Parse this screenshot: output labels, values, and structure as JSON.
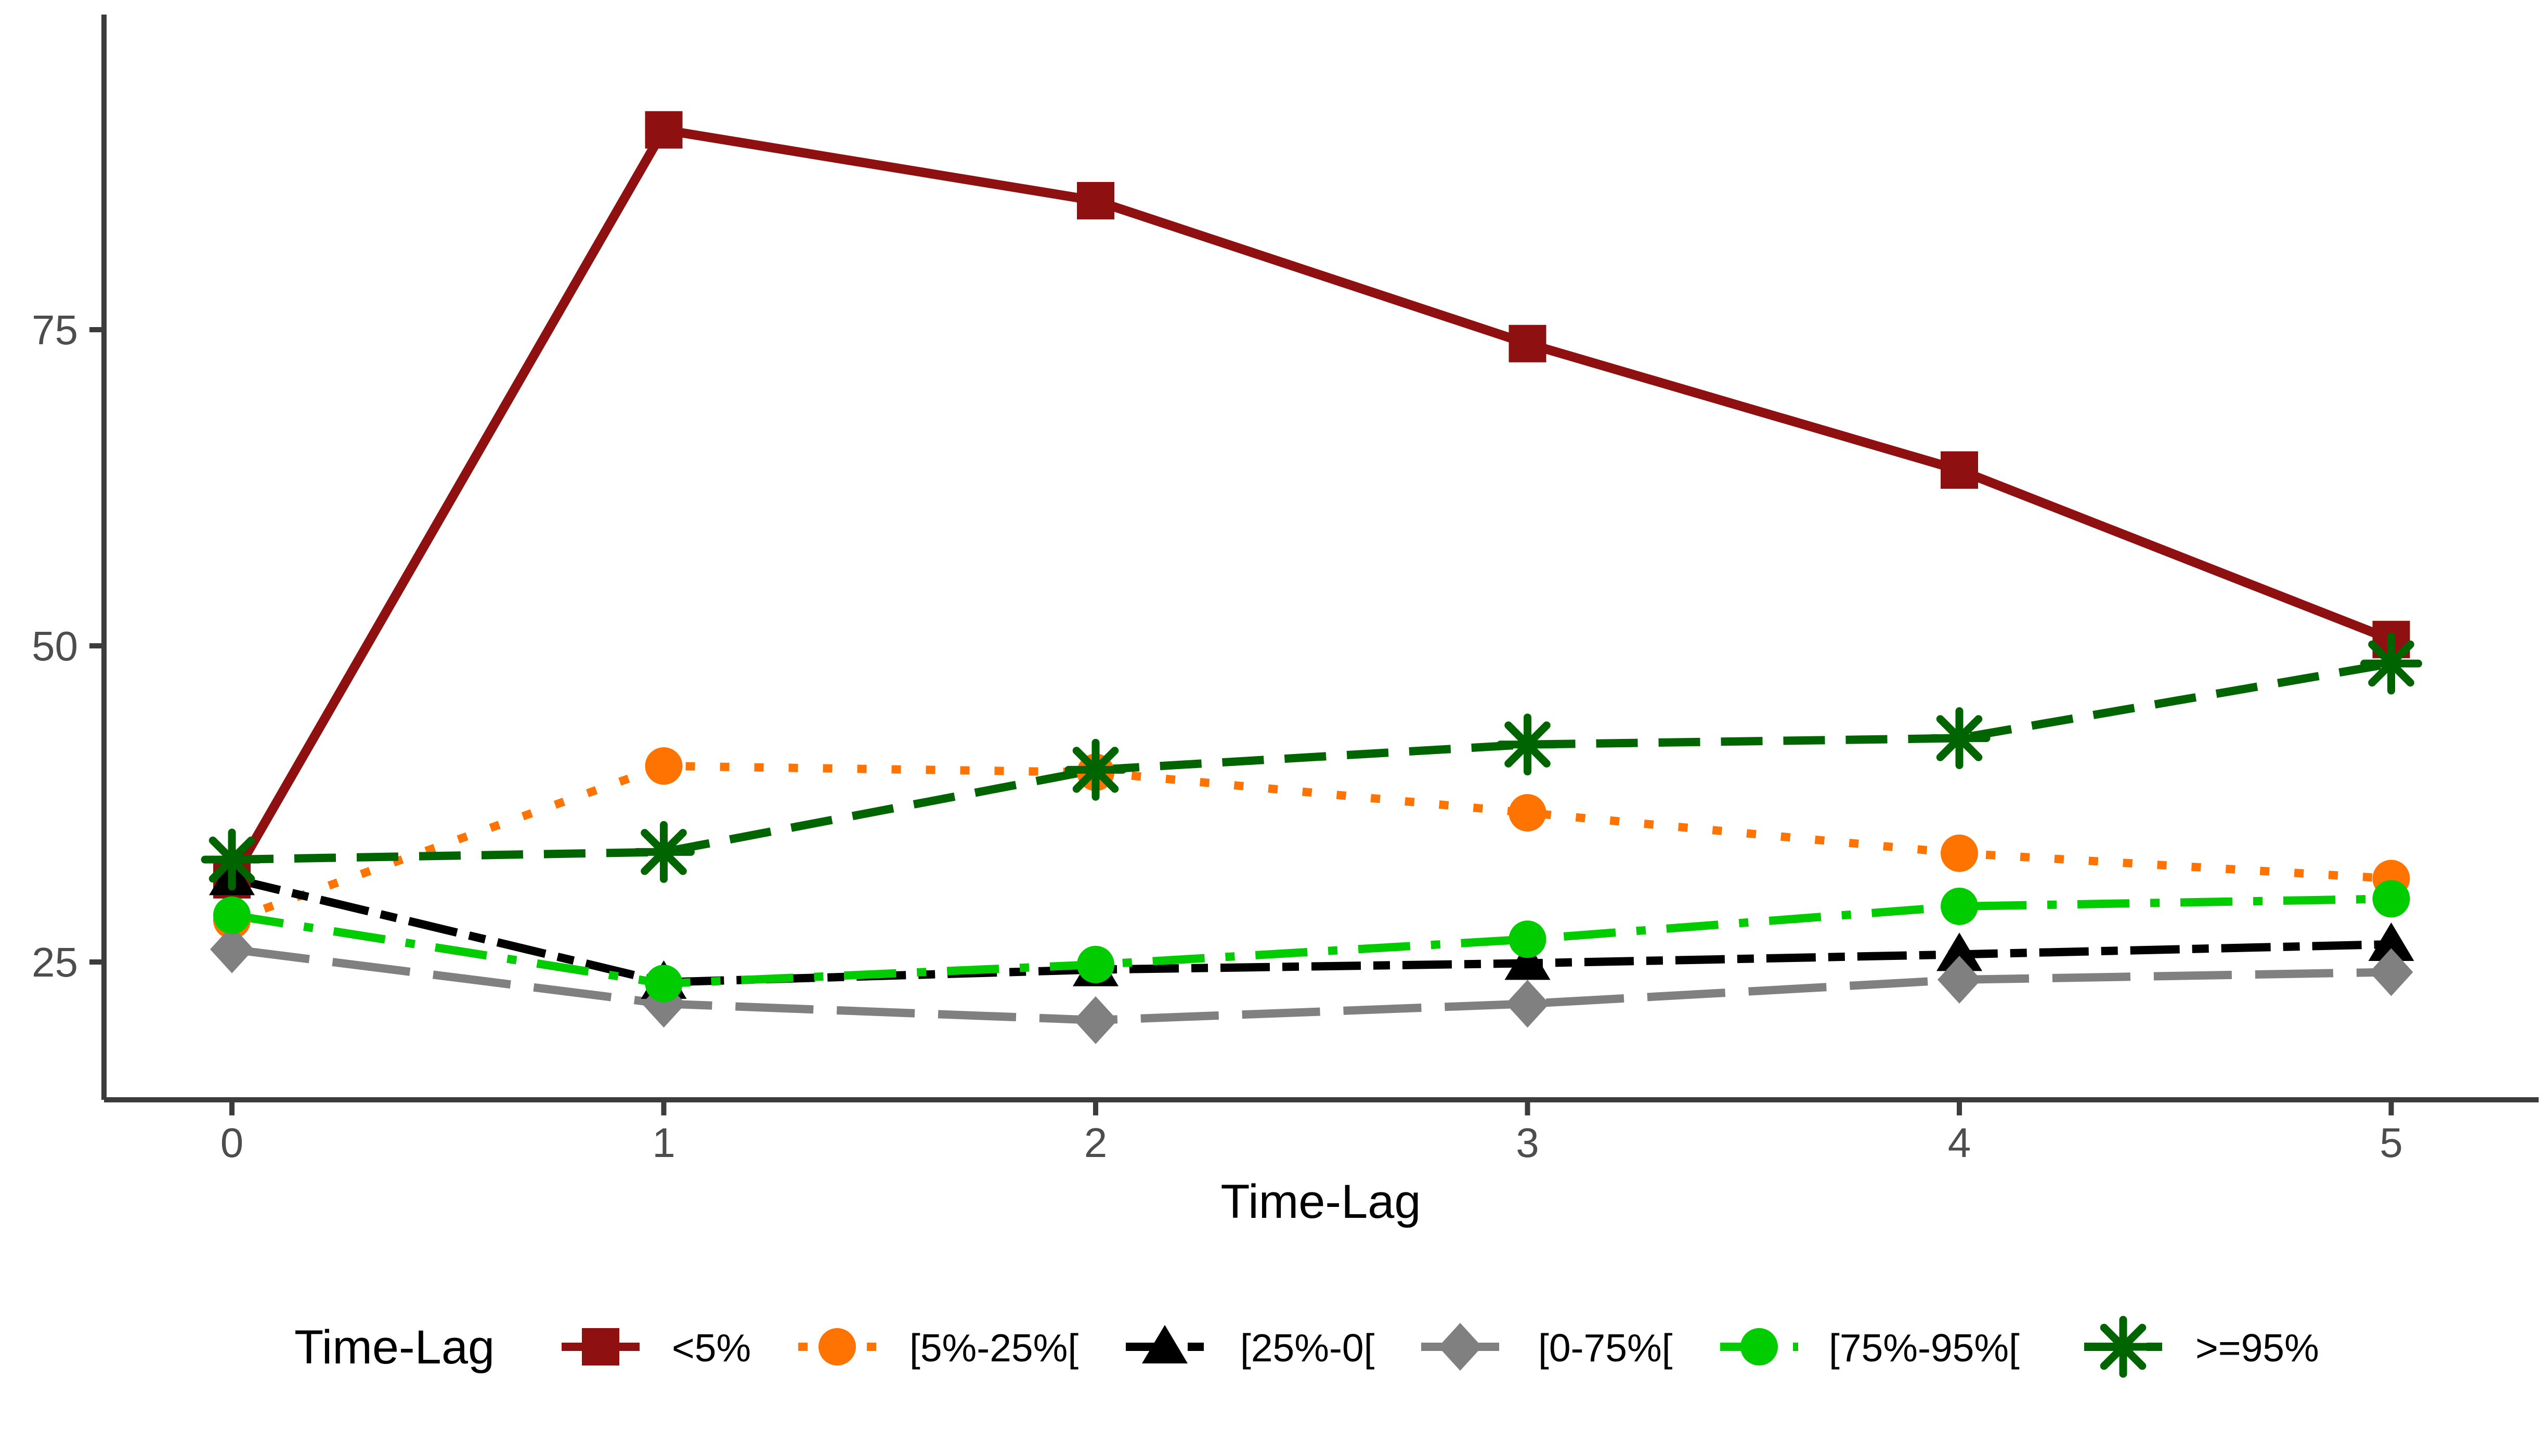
{
  "chart_data": {
    "type": "line",
    "title": "",
    "xlabel": "Time-Lag",
    "ylabel": "",
    "legend_title": "Time-Lag",
    "legend_position": "bottom",
    "grid": false,
    "x": [
      0,
      1,
      2,
      3,
      4,
      5
    ],
    "xticks": [
      "0",
      "1",
      "2",
      "3",
      "4",
      "5"
    ],
    "yticks": [
      "25",
      "50",
      "75"
    ],
    "xlim": [
      -0.3,
      5.34
    ],
    "ylim": [
      14.3,
      99.6
    ],
    "series": [
      {
        "name": "<5%",
        "color": "#8F1010",
        "marker": "square",
        "linestyle": "solid",
        "values": [
          31.5,
          90.8,
          85.2,
          73.9,
          63.9,
          50.5
        ]
      },
      {
        "name": "[5%-25%[",
        "color": "#FF7400",
        "marker": "circle",
        "linestyle": "dotted",
        "values": [
          28.3,
          40.5,
          40.0,
          36.8,
          33.6,
          31.6
        ]
      },
      {
        "name": "[25%-0[",
        "color": "#000000",
        "marker": "triangle",
        "linestyle": "twodash",
        "values": [
          31.6,
          23.4,
          24.4,
          24.9,
          25.6,
          26.4
        ]
      },
      {
        "name": "[0-75%[",
        "color": "#808080",
        "marker": "diamond",
        "linestyle": "longdash",
        "values": [
          26.0,
          21.7,
          20.4,
          21.7,
          23.6,
          24.2
        ]
      },
      {
        "name": "[75%-95%[",
        "color": "#00CC00",
        "marker": "circle",
        "linestyle": "dashdot",
        "values": [
          28.7,
          23.3,
          24.8,
          26.8,
          29.4,
          30.0
        ]
      },
      {
        "name": ">=95%",
        "color": "#006400",
        "marker": "asterisk",
        "linestyle": "dashed",
        "values": [
          33.1,
          33.7,
          40.2,
          42.2,
          42.7,
          48.6
        ]
      }
    ]
  },
  "axes": {
    "tick_label_color": "#4D4D4D",
    "axis_line_color": "#3C3C3C"
  }
}
